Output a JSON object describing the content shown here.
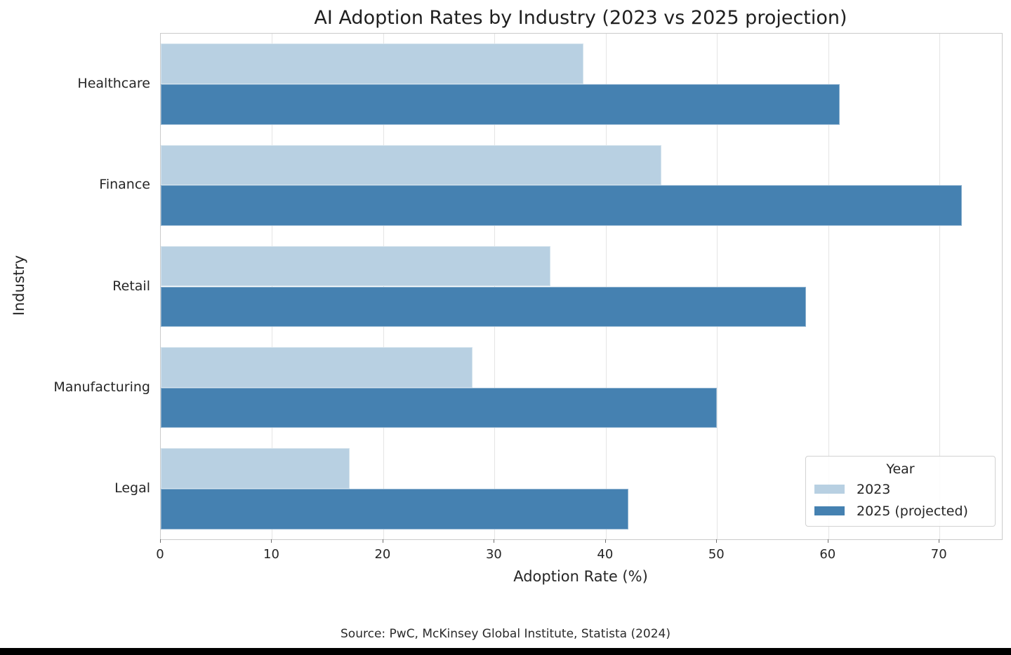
{
  "chart_data": {
    "type": "bar",
    "orientation": "horizontal",
    "title": "AI Adoption Rates by Industry (2023 vs 2025 projection)",
    "categories": [
      "Healthcare",
      "Finance",
      "Retail",
      "Manufacturing",
      "Legal"
    ],
    "series": [
      {
        "name": "2023",
        "color": "#b8d0e2",
        "values": [
          38,
          45,
          35,
          28,
          17
        ]
      },
      {
        "name": "2025 (projected)",
        "color": "#4581b1",
        "values": [
          61,
          72,
          58,
          50,
          42
        ]
      }
    ],
    "xlabel": "Adoption Rate (%)",
    "ylabel": "Industry",
    "xlim": [
      0,
      75.6
    ],
    "xticks": [
      0,
      10,
      20,
      30,
      40,
      50,
      60,
      70
    ],
    "grid": true,
    "legend": {
      "title": "Year",
      "position": "lower right"
    },
    "colors": {
      "grid": "#e4e4e4",
      "spine": "#cbcbcb",
      "text": "#262626"
    }
  },
  "footer": {
    "source": "Source: PwC, McKinsey Global Institute, Statista (2024)"
  }
}
